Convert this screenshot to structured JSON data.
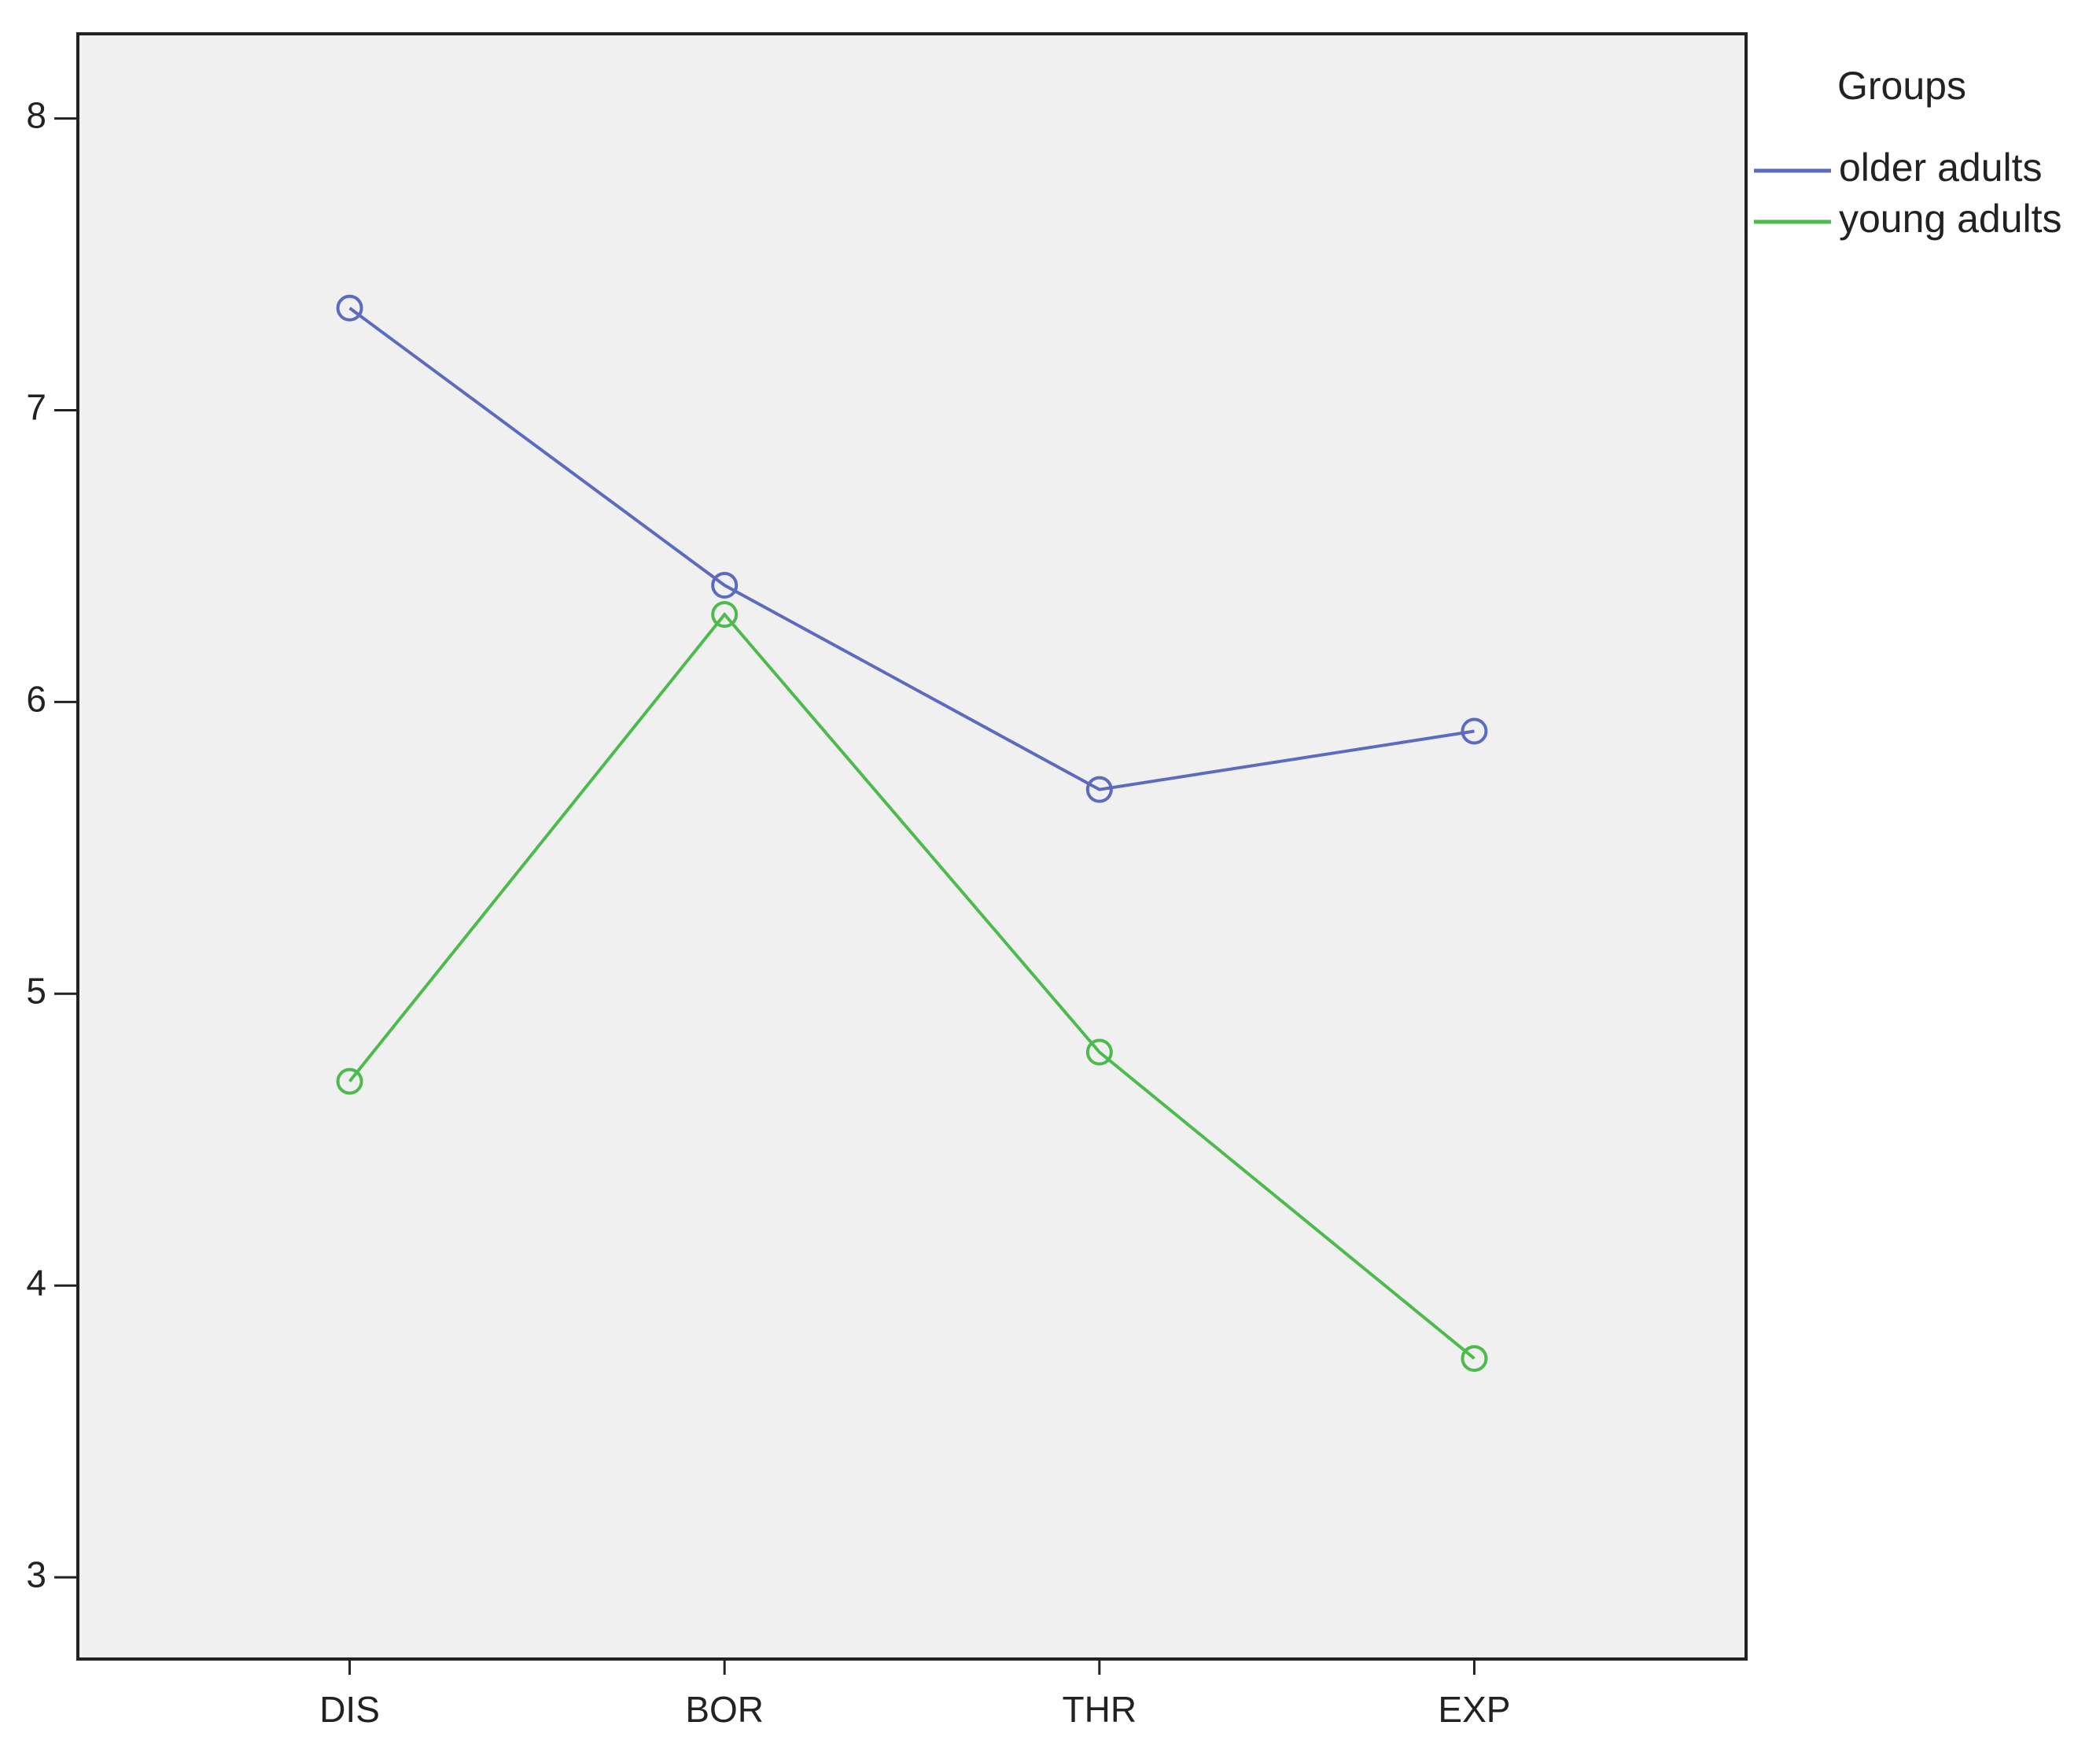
{
  "chart_data": {
    "type": "line",
    "categories": [
      "DIS",
      "BOR",
      "THR",
      "EXP"
    ],
    "series": [
      {
        "name": "older adults",
        "color": "#5b6bbf",
        "values": [
          7.35,
          6.4,
          5.7,
          5.9
        ]
      },
      {
        "name": "young adults",
        "color": "#4cbb4c",
        "values": [
          4.7,
          6.3,
          4.8,
          3.75
        ]
      }
    ],
    "legend_title": "Groups",
    "ylim": [
      2.72,
      8.29
    ],
    "yticks": [
      3,
      4,
      5,
      6,
      7,
      8
    ],
    "grid": false,
    "legend": "right"
  }
}
